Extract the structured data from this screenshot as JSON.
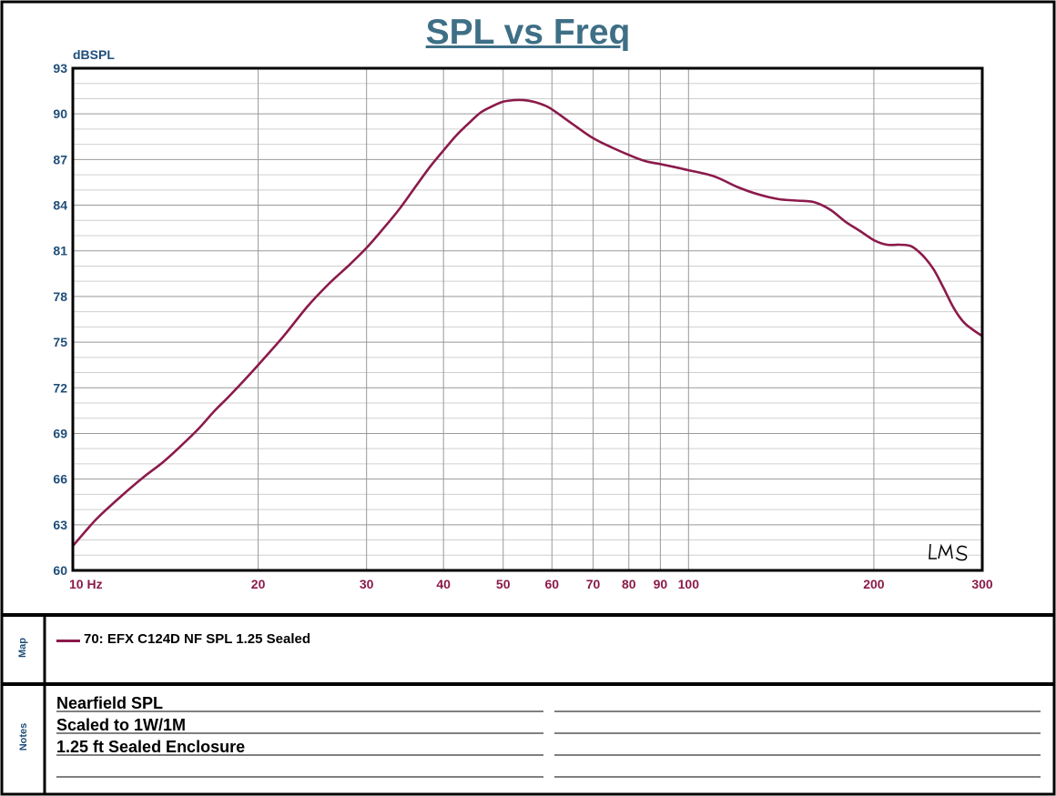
{
  "chart_data": {
    "type": "line",
    "title": "SPL vs Freq",
    "ylabel": "dBSPL",
    "xscale": "log",
    "xlim": [
      10,
      300
    ],
    "ylim": [
      60,
      93
    ],
    "y_ticks": [
      "60",
      "63",
      "66",
      "69",
      "72",
      "75",
      "78",
      "81",
      "84",
      "87",
      "90",
      "93"
    ],
    "x_ticks": [
      {
        "value": 10,
        "label": "10 Hz"
      },
      {
        "value": 20,
        "label": "20"
      },
      {
        "value": 30,
        "label": "30"
      },
      {
        "value": 40,
        "label": "40"
      },
      {
        "value": 50,
        "label": "50"
      },
      {
        "value": 60,
        "label": "60"
      },
      {
        "value": 70,
        "label": "70"
      },
      {
        "value": 80,
        "label": "80"
      },
      {
        "value": 90,
        "label": "90"
      },
      {
        "value": 100,
        "label": "100"
      },
      {
        "value": 200,
        "label": "200"
      },
      {
        "value": 300,
        "label": "300"
      }
    ],
    "grid": true,
    "series": [
      {
        "name": "70: EFX C124D NF SPL 1.25 Sealed",
        "color": "#8b1a4a",
        "x": [
          10,
          10.5,
          11,
          12,
          13,
          14,
          15,
          16,
          17,
          18,
          20,
          22,
          24,
          26,
          28,
          30,
          32,
          34,
          36,
          38,
          40,
          42,
          44,
          46,
          48,
          50,
          52,
          54,
          56,
          58,
          60,
          65,
          70,
          75,
          80,
          85,
          90,
          95,
          100,
          110,
          120,
          130,
          140,
          150,
          160,
          170,
          180,
          190,
          200,
          210,
          220,
          230,
          240,
          250,
          260,
          270,
          280,
          290,
          300
        ],
        "y": [
          61.6,
          62.6,
          63.5,
          64.9,
          66.1,
          67.1,
          68.2,
          69.3,
          70.5,
          71.5,
          73.5,
          75.4,
          77.3,
          78.8,
          80.0,
          81.2,
          82.5,
          83.8,
          85.2,
          86.5,
          87.6,
          88.6,
          89.4,
          90.1,
          90.5,
          90.8,
          90.9,
          90.9,
          90.8,
          90.6,
          90.3,
          89.3,
          88.4,
          87.8,
          87.3,
          86.9,
          86.7,
          86.5,
          86.3,
          85.9,
          85.2,
          84.7,
          84.4,
          84.3,
          84.2,
          83.7,
          82.9,
          82.3,
          81.7,
          81.4,
          81.4,
          81.3,
          80.7,
          79.8,
          78.5,
          77.2,
          76.3,
          75.8,
          75.4
        ]
      }
    ],
    "watermark": "LMS"
  },
  "panels": {
    "map_label": "Map",
    "notes_label": "Notes"
  },
  "notes": [
    "Nearfield SPL",
    "Scaled to 1W/1M",
    "1.25 ft Sealed Enclosure"
  ]
}
